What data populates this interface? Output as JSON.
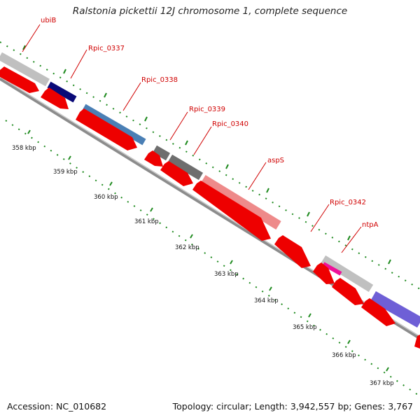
{
  "title": "Ralstonia pickettii 12J chromosome 1, complete sequence",
  "footer": {
    "accession": "Accession: NC_010682",
    "summary": "Topology: circular; Length: 3,942,557 bp; Genes: 3,767"
  },
  "colors": {
    "cds_forward_gray": "#c0c0c0",
    "cds_red": "#ee0000",
    "label_red": "#d00000",
    "tick_green": "#1e8a1e",
    "backbone_gray": "#8c8c8c",
    "navy": "#0a0a78",
    "steel_blue": "#4a7fb5",
    "dark_gray": "#6e6e6e",
    "salmon": "#ee8a8a",
    "magenta": "#ee1199",
    "violet": "#6e5fd6"
  },
  "kbp_labels": [
    "358 kbp",
    "359 kbp",
    "360 kbp",
    "361 kbp",
    "362 kbp",
    "363 kbp",
    "364 kbp",
    "365 kbp",
    "366 kbp",
    "367 kbp"
  ],
  "gene_labels": [
    "ubiB",
    "Rpic_0337",
    "Rpic_0338",
    "Rpic_0339",
    "Rpic_0340",
    "aspS",
    "Rpic_0342",
    "ntpA"
  ]
}
